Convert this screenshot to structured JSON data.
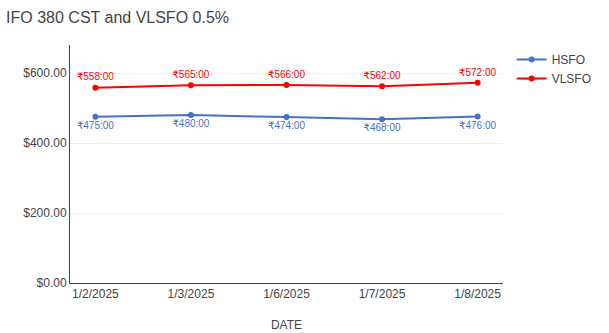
{
  "chart_data": {
    "type": "line",
    "title": "IFO 380 CST and VLSFO 0.5%",
    "xlabel": "DATE",
    "categories": [
      "1/2/2025",
      "1/3/2025",
      "1/6/2025",
      "1/7/2025",
      "1/8/2025"
    ],
    "series": [
      {
        "name": "VLSFO",
        "color": "#FF0000",
        "values": [
          558,
          565,
          566,
          562,
          572
        ],
        "value_labels": [
          "₹558:00",
          "₹565:00",
          "₹566:00",
          "₹562:00",
          "₹572:00"
        ]
      },
      {
        "name": "HSFO",
        "color": "#4472C4",
        "values": [
          475,
          480,
          474,
          468,
          476
        ],
        "value_labels": [
          "₹475:00",
          "₹480:00",
          "₹474:00",
          "₹468:00",
          "₹476:00"
        ]
      }
    ],
    "ylim": [
      0,
      680
    ],
    "yticks": [
      {
        "value": 0,
        "label": "$0.00"
      },
      {
        "value": 200,
        "label": "$200.00"
      },
      {
        "value": 400,
        "label": "$400.00"
      },
      {
        "value": 600,
        "label": "$600.00"
      }
    ],
    "grid": true,
    "legend": "upper right",
    "data_labels": true,
    "marker": "circle"
  }
}
